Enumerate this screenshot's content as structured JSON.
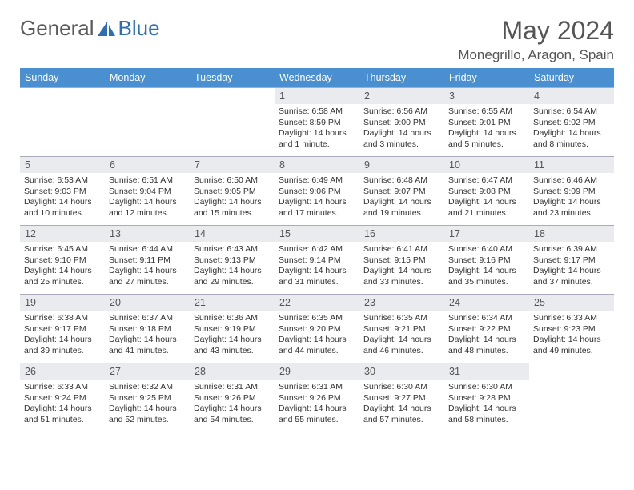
{
  "logo": {
    "text1": "General",
    "text2": "Blue"
  },
  "title": "May 2024",
  "location": "Monegrillo, Aragon, Spain",
  "colors": {
    "header_bg": "#4a8fd0",
    "daynum_bg": "#e9ebef",
    "border": "#aab"
  },
  "weekdays": [
    "Sunday",
    "Monday",
    "Tuesday",
    "Wednesday",
    "Thursday",
    "Friday",
    "Saturday"
  ],
  "weeks": [
    [
      {
        "n": "",
        "s": "",
        "t": "",
        "d": ""
      },
      {
        "n": "",
        "s": "",
        "t": "",
        "d": ""
      },
      {
        "n": "",
        "s": "",
        "t": "",
        "d": ""
      },
      {
        "n": "1",
        "s": "Sunrise: 6:58 AM",
        "t": "Sunset: 8:59 PM",
        "d": "Daylight: 14 hours and 1 minute."
      },
      {
        "n": "2",
        "s": "Sunrise: 6:56 AM",
        "t": "Sunset: 9:00 PM",
        "d": "Daylight: 14 hours and 3 minutes."
      },
      {
        "n": "3",
        "s": "Sunrise: 6:55 AM",
        "t": "Sunset: 9:01 PM",
        "d": "Daylight: 14 hours and 5 minutes."
      },
      {
        "n": "4",
        "s": "Sunrise: 6:54 AM",
        "t": "Sunset: 9:02 PM",
        "d": "Daylight: 14 hours and 8 minutes."
      }
    ],
    [
      {
        "n": "5",
        "s": "Sunrise: 6:53 AM",
        "t": "Sunset: 9:03 PM",
        "d": "Daylight: 14 hours and 10 minutes."
      },
      {
        "n": "6",
        "s": "Sunrise: 6:51 AM",
        "t": "Sunset: 9:04 PM",
        "d": "Daylight: 14 hours and 12 minutes."
      },
      {
        "n": "7",
        "s": "Sunrise: 6:50 AM",
        "t": "Sunset: 9:05 PM",
        "d": "Daylight: 14 hours and 15 minutes."
      },
      {
        "n": "8",
        "s": "Sunrise: 6:49 AM",
        "t": "Sunset: 9:06 PM",
        "d": "Daylight: 14 hours and 17 minutes."
      },
      {
        "n": "9",
        "s": "Sunrise: 6:48 AM",
        "t": "Sunset: 9:07 PM",
        "d": "Daylight: 14 hours and 19 minutes."
      },
      {
        "n": "10",
        "s": "Sunrise: 6:47 AM",
        "t": "Sunset: 9:08 PM",
        "d": "Daylight: 14 hours and 21 minutes."
      },
      {
        "n": "11",
        "s": "Sunrise: 6:46 AM",
        "t": "Sunset: 9:09 PM",
        "d": "Daylight: 14 hours and 23 minutes."
      }
    ],
    [
      {
        "n": "12",
        "s": "Sunrise: 6:45 AM",
        "t": "Sunset: 9:10 PM",
        "d": "Daylight: 14 hours and 25 minutes."
      },
      {
        "n": "13",
        "s": "Sunrise: 6:44 AM",
        "t": "Sunset: 9:11 PM",
        "d": "Daylight: 14 hours and 27 minutes."
      },
      {
        "n": "14",
        "s": "Sunrise: 6:43 AM",
        "t": "Sunset: 9:13 PM",
        "d": "Daylight: 14 hours and 29 minutes."
      },
      {
        "n": "15",
        "s": "Sunrise: 6:42 AM",
        "t": "Sunset: 9:14 PM",
        "d": "Daylight: 14 hours and 31 minutes."
      },
      {
        "n": "16",
        "s": "Sunrise: 6:41 AM",
        "t": "Sunset: 9:15 PM",
        "d": "Daylight: 14 hours and 33 minutes."
      },
      {
        "n": "17",
        "s": "Sunrise: 6:40 AM",
        "t": "Sunset: 9:16 PM",
        "d": "Daylight: 14 hours and 35 minutes."
      },
      {
        "n": "18",
        "s": "Sunrise: 6:39 AM",
        "t": "Sunset: 9:17 PM",
        "d": "Daylight: 14 hours and 37 minutes."
      }
    ],
    [
      {
        "n": "19",
        "s": "Sunrise: 6:38 AM",
        "t": "Sunset: 9:17 PM",
        "d": "Daylight: 14 hours and 39 minutes."
      },
      {
        "n": "20",
        "s": "Sunrise: 6:37 AM",
        "t": "Sunset: 9:18 PM",
        "d": "Daylight: 14 hours and 41 minutes."
      },
      {
        "n": "21",
        "s": "Sunrise: 6:36 AM",
        "t": "Sunset: 9:19 PM",
        "d": "Daylight: 14 hours and 43 minutes."
      },
      {
        "n": "22",
        "s": "Sunrise: 6:35 AM",
        "t": "Sunset: 9:20 PM",
        "d": "Daylight: 14 hours and 44 minutes."
      },
      {
        "n": "23",
        "s": "Sunrise: 6:35 AM",
        "t": "Sunset: 9:21 PM",
        "d": "Daylight: 14 hours and 46 minutes."
      },
      {
        "n": "24",
        "s": "Sunrise: 6:34 AM",
        "t": "Sunset: 9:22 PM",
        "d": "Daylight: 14 hours and 48 minutes."
      },
      {
        "n": "25",
        "s": "Sunrise: 6:33 AM",
        "t": "Sunset: 9:23 PM",
        "d": "Daylight: 14 hours and 49 minutes."
      }
    ],
    [
      {
        "n": "26",
        "s": "Sunrise: 6:33 AM",
        "t": "Sunset: 9:24 PM",
        "d": "Daylight: 14 hours and 51 minutes."
      },
      {
        "n": "27",
        "s": "Sunrise: 6:32 AM",
        "t": "Sunset: 9:25 PM",
        "d": "Daylight: 14 hours and 52 minutes."
      },
      {
        "n": "28",
        "s": "Sunrise: 6:31 AM",
        "t": "Sunset: 9:26 PM",
        "d": "Daylight: 14 hours and 54 minutes."
      },
      {
        "n": "29",
        "s": "Sunrise: 6:31 AM",
        "t": "Sunset: 9:26 PM",
        "d": "Daylight: 14 hours and 55 minutes."
      },
      {
        "n": "30",
        "s": "Sunrise: 6:30 AM",
        "t": "Sunset: 9:27 PM",
        "d": "Daylight: 14 hours and 57 minutes."
      },
      {
        "n": "31",
        "s": "Sunrise: 6:30 AM",
        "t": "Sunset: 9:28 PM",
        "d": "Daylight: 14 hours and 58 minutes."
      },
      {
        "n": "",
        "s": "",
        "t": "",
        "d": ""
      }
    ]
  ]
}
